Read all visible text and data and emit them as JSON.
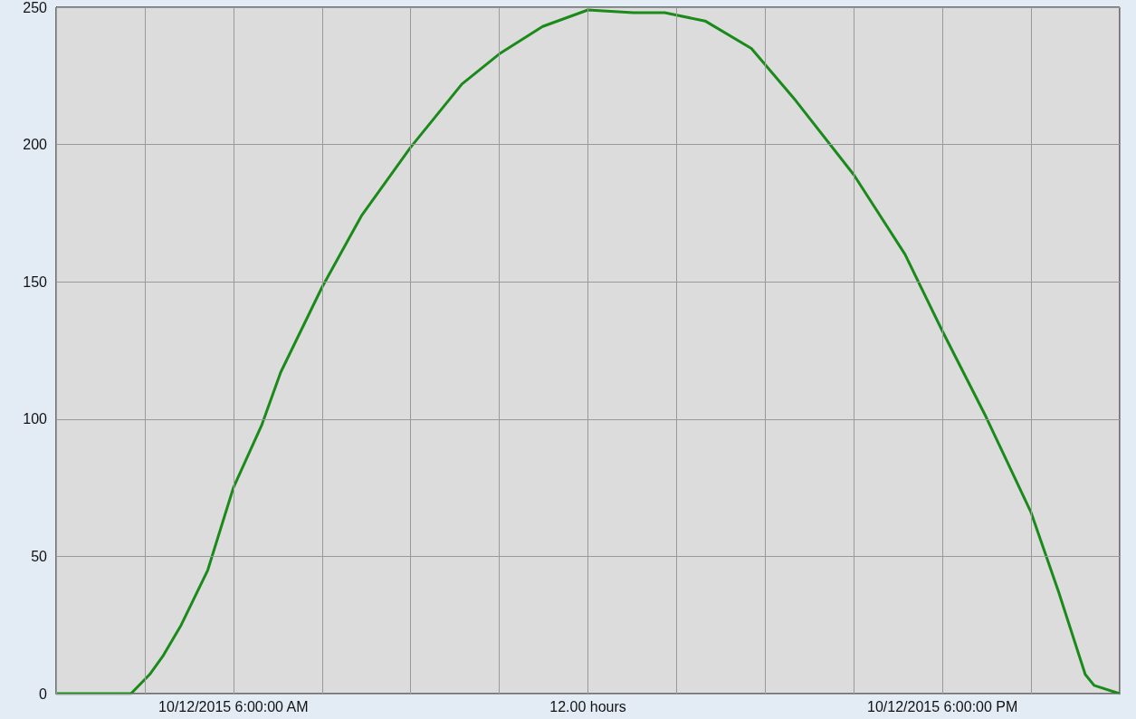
{
  "chart_data": {
    "type": "line",
    "x": [
      "2015-10-12T03:00",
      "2015-10-12T04:16",
      "2015-10-12T04:35",
      "2015-10-12T04:49",
      "2015-10-12T05:07",
      "2015-10-12T05:34",
      "2015-10-12T06:00",
      "2015-10-12T06:29",
      "2015-10-12T06:48",
      "2015-10-12T07:30",
      "2015-10-12T08:10",
      "2015-10-12T09:00",
      "2015-10-12T09:52",
      "2015-10-12T10:30",
      "2015-10-12T11:14",
      "2015-10-12T12:00",
      "2015-10-12T12:46",
      "2015-10-12T13:18",
      "2015-10-12T13:59",
      "2015-10-12T14:46",
      "2015-10-12T15:31",
      "2015-10-12T16:30",
      "2015-10-12T17:22",
      "2015-10-12T18:00",
      "2015-10-12T18:44",
      "2015-10-12T19:30",
      "2015-10-12T19:58",
      "2015-10-12T20:25",
      "2015-10-12T20:34",
      "2015-10-12T21:00"
    ],
    "series": [
      {
        "color": "#1a8a1a",
        "values": [
          0,
          0,
          7,
          14,
          25,
          45,
          75,
          98,
          117,
          148,
          174,
          199,
          222,
          233,
          243,
          249,
          248,
          248,
          245,
          235,
          216,
          189,
          160,
          132,
          101,
          66,
          37,
          7,
          3,
          0
        ]
      }
    ],
    "xlim": [
      "2015-10-12T03:00",
      "2015-10-12T21:00"
    ],
    "xticks": [
      {
        "value": "2015-10-12T03:00",
        "label": null
      },
      {
        "value": "2015-10-12T04:30",
        "label": null
      },
      {
        "value": "2015-10-12T06:00",
        "label": "10/12/2015 6:00:00 AM"
      },
      {
        "value": "2015-10-12T07:30",
        "label": null
      },
      {
        "value": "2015-10-12T09:00",
        "label": null
      },
      {
        "value": "2015-10-12T10:30",
        "label": null
      },
      {
        "value": "2015-10-12T12:00",
        "label": "12.00 hours"
      },
      {
        "value": "2015-10-12T13:30",
        "label": null
      },
      {
        "value": "2015-10-12T15:00",
        "label": null
      },
      {
        "value": "2015-10-12T16:30",
        "label": null
      },
      {
        "value": "2015-10-12T18:00",
        "label": "10/12/2015 6:00:00 PM"
      },
      {
        "value": "2015-10-12T19:30",
        "label": null
      },
      {
        "value": "2015-10-12T21:00",
        "label": null
      }
    ],
    "ylim": [
      0,
      250
    ],
    "yticks": [
      0,
      50,
      100,
      150,
      200,
      250
    ],
    "grid": true
  }
}
